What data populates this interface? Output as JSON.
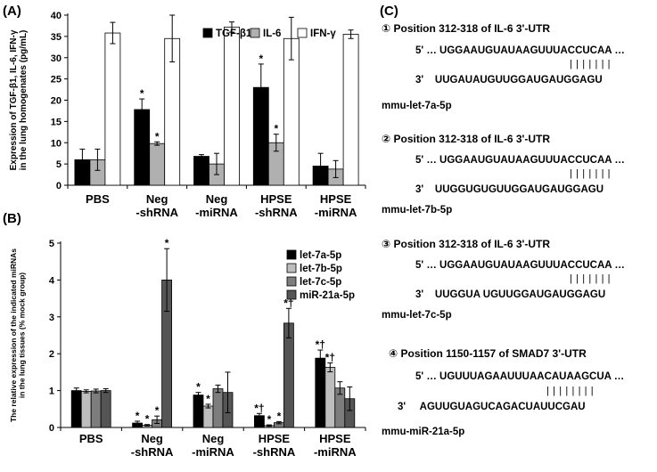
{
  "panels": {
    "a": "(A)",
    "b": "(B)",
    "c": "(C)"
  },
  "chart_data": [
    {
      "type": "bar",
      "ylabel": "Expression of TGF-β1, IL-6, IFN-γ in the lung homogenates (pg/mL)",
      "ylim": [
        0,
        40
      ],
      "yticks": [
        0,
        5,
        10,
        15,
        20,
        25,
        30,
        35,
        40
      ],
      "categories": [
        "PBS",
        "Neg\n-shRNA",
        "Neg\n-miRNA",
        "HPSE\n-shRNA",
        "HPSE\n-miRNA"
      ],
      "legend_position": "top-right",
      "series": [
        {
          "name": "TGF-β1",
          "color": "#000000",
          "values": [
            6.0,
            17.8,
            6.8,
            23.0,
            4.5
          ],
          "errors": [
            2.5,
            2.5,
            0.4,
            5.5,
            3.0
          ],
          "marks": [
            "",
            "*",
            "",
            "*",
            ""
          ]
        },
        {
          "name": "IL-6",
          "color": "#b0b0b0",
          "values": [
            6.0,
            9.8,
            5.0,
            10.0,
            3.8
          ],
          "errors": [
            2.5,
            0.4,
            2.5,
            2.0,
            2.0
          ],
          "marks": [
            "",
            "*",
            "",
            "*",
            ""
          ]
        },
        {
          "name": "IFN-γ",
          "color": "#ffffff",
          "values": [
            35.8,
            34.5,
            37.2,
            34.5,
            35.5
          ],
          "errors": [
            2.5,
            5.5,
            1.2,
            5.0,
            1.0
          ],
          "marks": [
            "",
            "",
            "",
            "",
            ""
          ]
        }
      ]
    },
    {
      "type": "bar",
      "ylabel": "The relative expression of the indicated miRNAs in the lung tissues (% mock group)",
      "ylim": [
        0,
        5
      ],
      "yticks": [
        0,
        1,
        2,
        3,
        4,
        5
      ],
      "categories": [
        "PBS",
        "Neg\n-shRNA",
        "Neg\n-miRNA",
        "HPSE\n-shRNA",
        "HPSE\n-miRNA"
      ],
      "legend_position": "top-right",
      "series": [
        {
          "name": "let-7a-5p",
          "color": "#000000",
          "values": [
            1.0,
            0.12,
            0.88,
            0.32,
            1.88
          ],
          "errors": [
            0.07,
            0.05,
            0.07,
            0.06,
            0.22
          ],
          "marks": [
            "",
            "*",
            "*",
            "*†",
            "*†"
          ]
        },
        {
          "name": "let-7b-5p",
          "color": "#bdbdbd",
          "values": [
            0.98,
            0.06,
            0.58,
            0.05,
            1.63
          ],
          "errors": [
            0.04,
            0.02,
            0.05,
            0.02,
            0.12
          ],
          "marks": [
            "",
            "*",
            "*",
            "*",
            "*†"
          ]
        },
        {
          "name": "let-7c-5p",
          "color": "#7d7d7d",
          "values": [
            0.99,
            0.21,
            1.05,
            0.13,
            1.07
          ],
          "errors": [
            0.05,
            0.1,
            0.1,
            0.03,
            0.17
          ],
          "marks": [
            "",
            "*",
            "",
            "*",
            ""
          ]
        },
        {
          "name": "miR-21a-5p",
          "color": "#555555",
          "values": [
            1.0,
            4.0,
            0.95,
            2.83,
            0.78
          ],
          "errors": [
            0.05,
            0.85,
            0.55,
            0.4,
            0.32
          ],
          "marks": [
            "",
            "*",
            "",
            "*†",
            ""
          ]
        }
      ]
    }
  ],
  "panel_c": {
    "entries": [
      {
        "title": "① Position 312-318 of IL-6 3'-UTR",
        "target": "5' … UGGAAUGUAUAAGUUUACCUCAA …",
        "pairs": "| | | | | | |",
        "mirna": "3'    UUGAUAUGUUGGAUGAUGGAGU",
        "name": "mmu-let-7a-5p"
      },
      {
        "title": "② Position 312-318 of IL-6 3'-UTR",
        "target": "5' … UGGAAUGUAUAAGUUUACCUCAA …",
        "pairs": "| | | | | | |",
        "mirna": "3'    UUGGUGUGUUGGAUGAUGGAGU",
        "name": "mmu-let-7b-5p"
      },
      {
        "title": "③ Position 312-318 of IL-6 3'-UTR",
        "target": "5' … UGGAAUGUAUAAGUUUACCUCAA …",
        "pairs": "| | | | | | |",
        "mirna": "3'    UUGGUA UGUUGGAUGAUGGAGU",
        "name": "mmu-let-7c-5p"
      },
      {
        "title": "④ Position 1150-1157 of SMAD7 3'-UTR",
        "target": "5' … UGUUUAGAAUUUAACAUAAGCUA …",
        "pairs": "| | | | | | | |",
        "mirna": "3'     AGUUGUAGUCAGACUAUUCGAU",
        "name": "mmu-miR-21a-5p"
      }
    ]
  }
}
